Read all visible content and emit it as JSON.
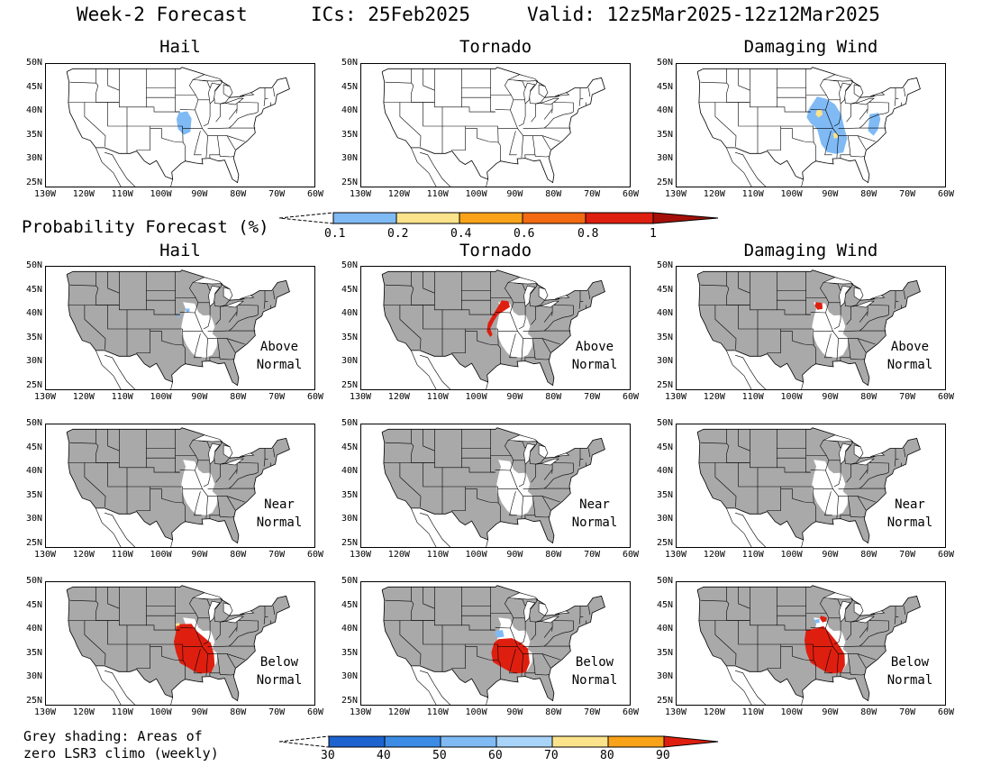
{
  "header": {
    "product": "Week-2 Forecast",
    "ics": "ICs: 25Feb2025",
    "valid": "Valid: 12z5Mar2025-12z12Mar2025"
  },
  "columns": [
    "Hail",
    "Tornado",
    "Damaging Wind"
  ],
  "prob_legend": {
    "title": "Probability Forecast (%)",
    "ticks": [
      "0.1",
      "0.2",
      "0.4",
      "0.6",
      "0.8",
      "1"
    ],
    "colors": [
      "#7fbaf5",
      "#fbe38c",
      "#f9a31a",
      "#f36a12",
      "#de1f10",
      "#a41009"
    ]
  },
  "categories": [
    {
      "line1": "Above",
      "line2": "Normal"
    },
    {
      "line1": "Near",
      "line2": "Normal"
    },
    {
      "line1": "Below",
      "line2": "Normal"
    }
  ],
  "footnote": {
    "line1": "Grey shading: Areas of",
    "line2": "zero LSR3 climo (weekly)"
  },
  "pct_legend": {
    "ticks": [
      "30",
      "40",
      "50",
      "60",
      "70",
      "80",
      "90"
    ],
    "colors": [
      "#1c63cf",
      "#3c8ce6",
      "#7fbaf5",
      "#a9d4fa",
      "#fbe38c",
      "#f9a31a",
      "#f36a12",
      "#de1f10"
    ]
  },
  "axes": {
    "lat_labels": [
      "50N",
      "45N",
      "40N",
      "35N",
      "30N",
      "25N"
    ],
    "lon_labels": [
      "130W",
      "120W",
      "110W",
      "100W",
      "90W",
      "80W",
      "70W",
      "60W"
    ]
  },
  "colors": {
    "grey": "#a9a9a9",
    "red": "#de1f10",
    "light_blue": "#7fbaf5",
    "yellow": "#fbe38c"
  }
}
